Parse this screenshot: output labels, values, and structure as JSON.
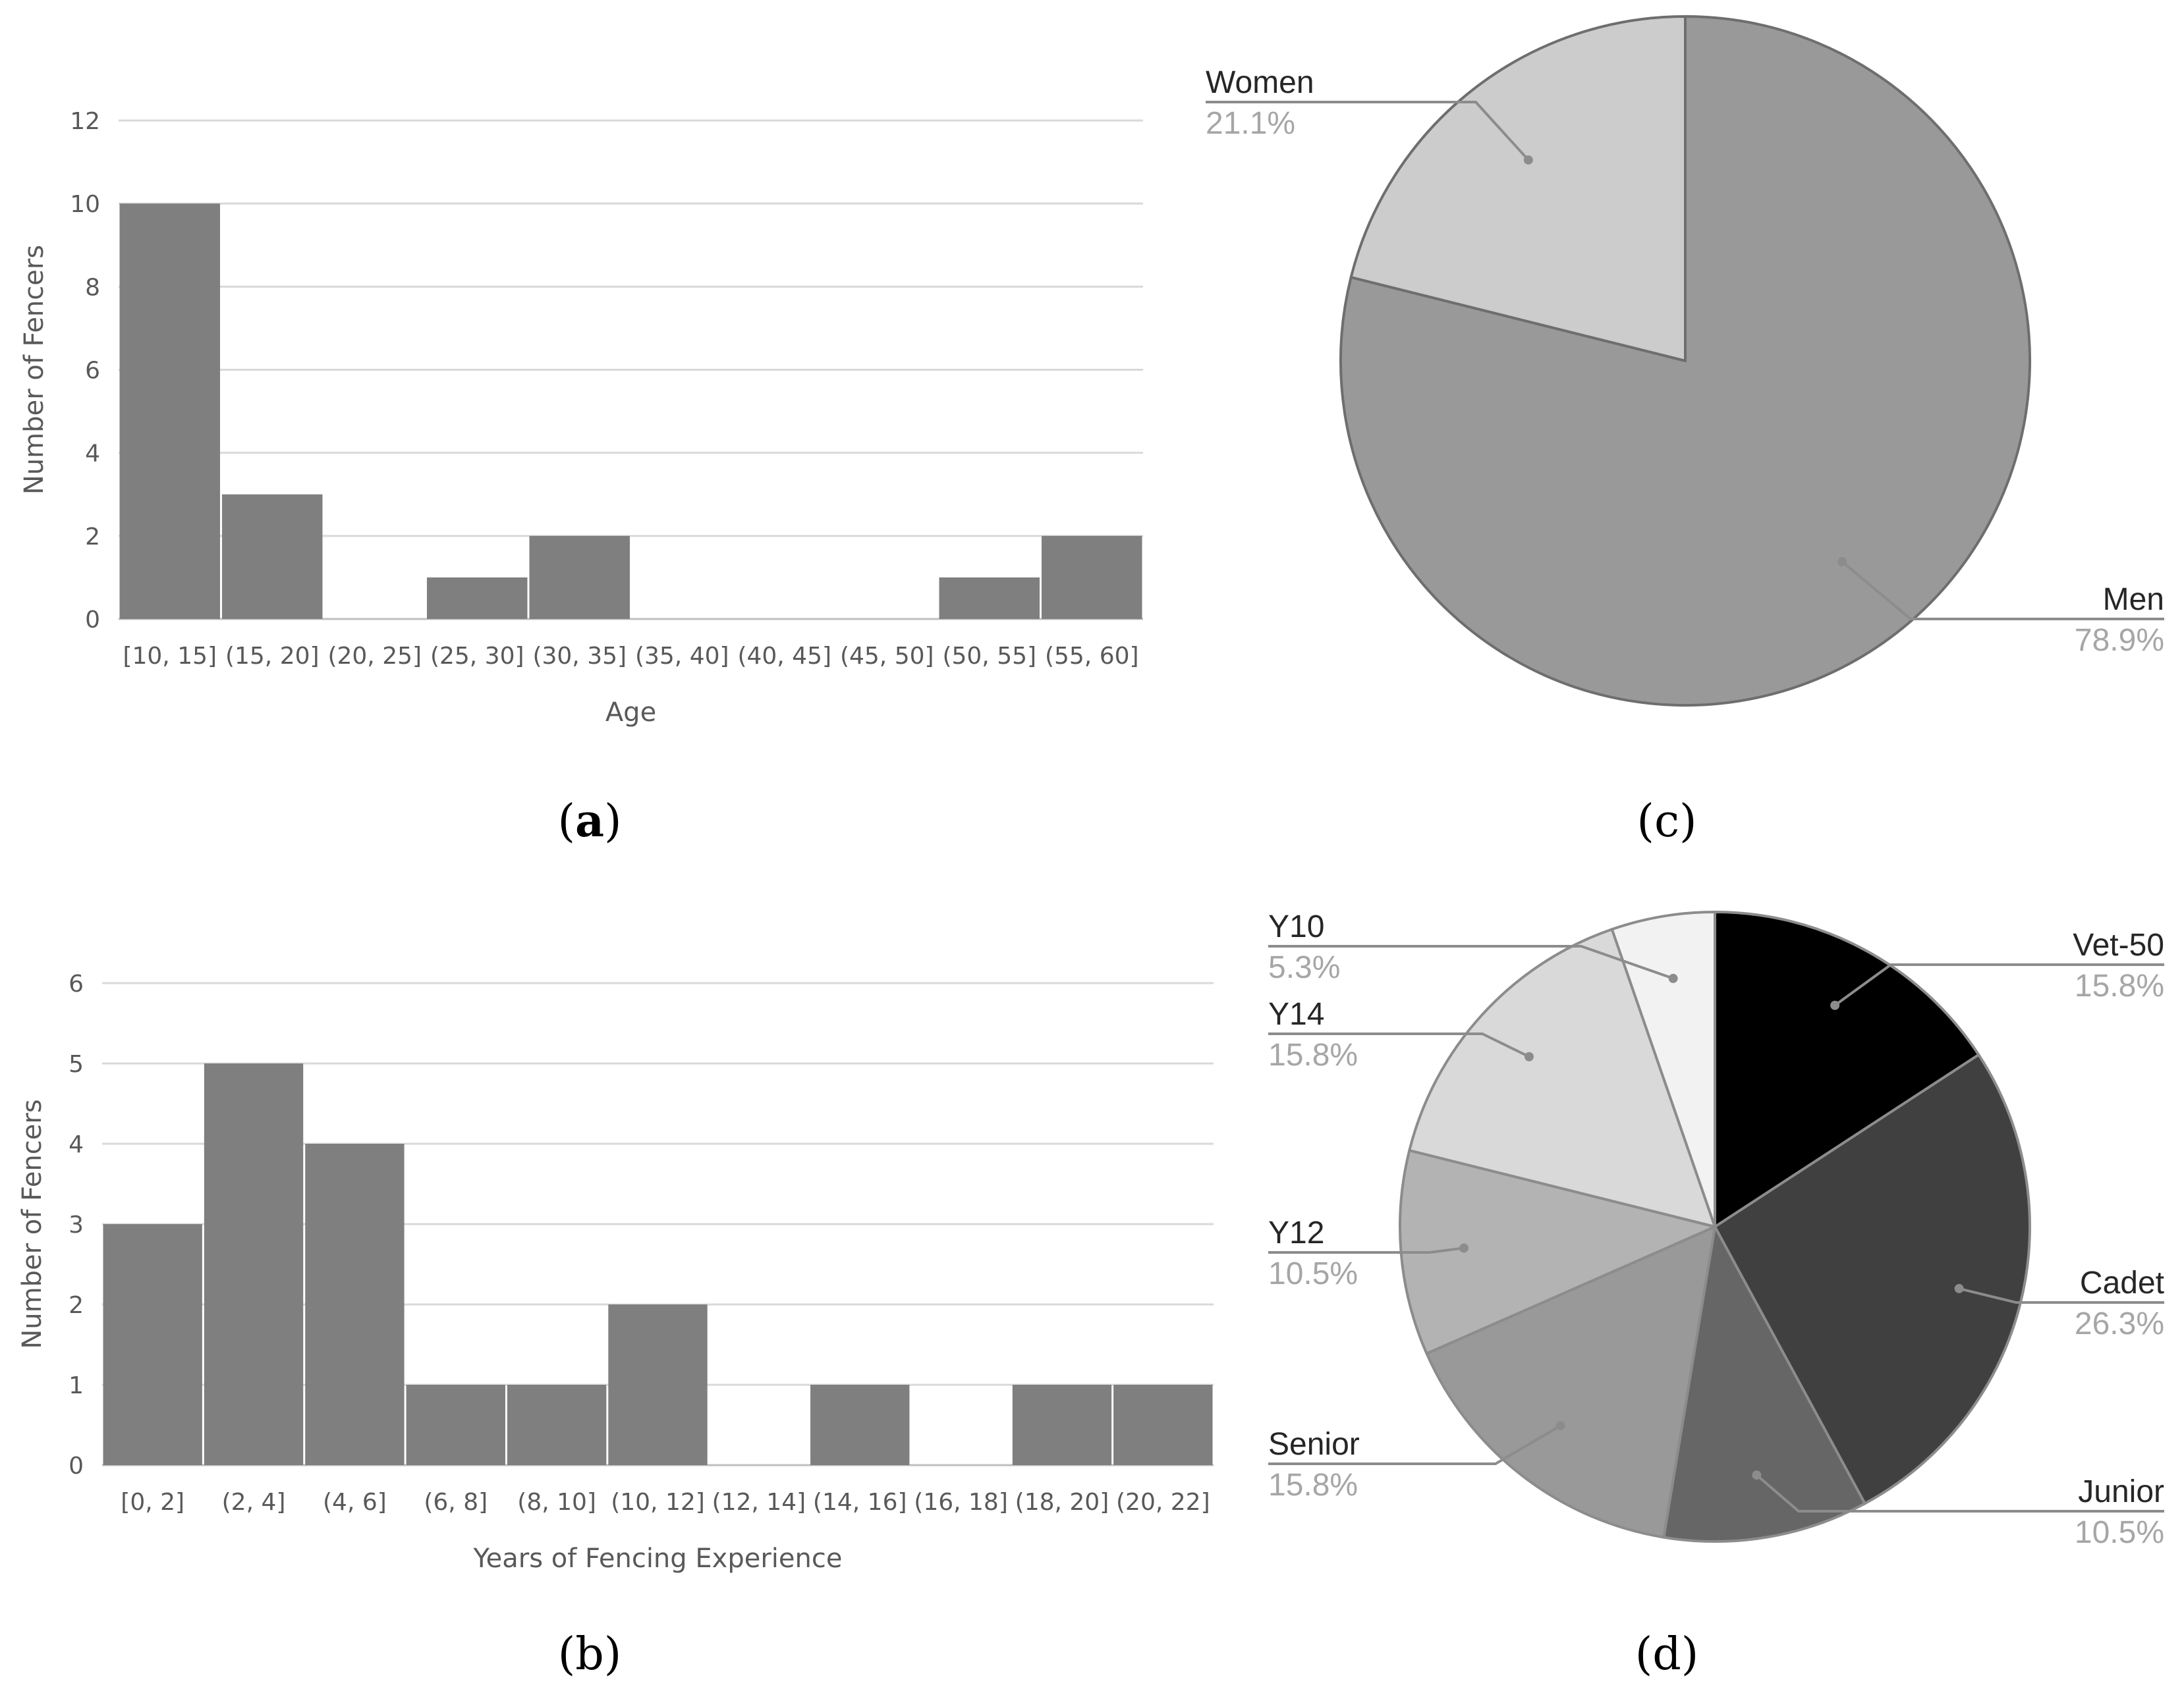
{
  "panel_labels": {
    "a_open": "(",
    "a_letter": "a",
    "a_close": ")",
    "b": "(b)",
    "c": "(c)",
    "d": "(d)"
  },
  "chart_data": [
    {
      "id": "a",
      "type": "bar",
      "title": "",
      "xlabel": "Age",
      "ylabel": "Number of Fencers",
      "categories": [
        "[10, 15]",
        "(15, 20]",
        "(20, 25]",
        "(25, 30]",
        "(30, 35]",
        "(35, 40]",
        "(40, 45]",
        "(45, 50]",
        "(50, 55]",
        "(55, 60]"
      ],
      "values": [
        10,
        3,
        0,
        1,
        2,
        0,
        0,
        0,
        1,
        2
      ],
      "ylim": [
        0,
        12
      ],
      "yticks": [
        0,
        2,
        4,
        6,
        8,
        10,
        12
      ],
      "grid": true,
      "bar_color": "#7f7f7f"
    },
    {
      "id": "b",
      "type": "bar",
      "title": "",
      "xlabel": "Years of Fencing Experience",
      "ylabel": "Number of Fencers",
      "categories": [
        "[0, 2]",
        "(2, 4]",
        "(4, 6]",
        "(6, 8]",
        "(8, 10]",
        "(10, 12]",
        "(12, 14]",
        "(14, 16]",
        "(16, 18]",
        "(18, 20]",
        "(20, 22]"
      ],
      "values": [
        3,
        5,
        4,
        1,
        1,
        2,
        0,
        1,
        0,
        1,
        1
      ],
      "ylim": [
        0,
        6
      ],
      "yticks": [
        0,
        1,
        2,
        3,
        4,
        5,
        6
      ],
      "grid": true,
      "bar_color": "#7f7f7f"
    },
    {
      "id": "c",
      "type": "pie",
      "title": "",
      "slices": [
        {
          "label": "Men",
          "value": 78.9,
          "pct_text": "78.9%",
          "color": "#999999"
        },
        {
          "label": "Women",
          "value": 21.1,
          "pct_text": "21.1%",
          "color": "#cccccc"
        }
      ]
    },
    {
      "id": "d",
      "type": "pie",
      "title": "",
      "slices": [
        {
          "label": "Vet-50",
          "value": 15.8,
          "pct_text": "15.8%",
          "color": "#000000"
        },
        {
          "label": "Cadet",
          "value": 26.3,
          "pct_text": "26.3%",
          "color": "#404040"
        },
        {
          "label": "Junior",
          "value": 10.5,
          "pct_text": "10.5%",
          "color": "#666666"
        },
        {
          "label": "Senior",
          "value": 15.8,
          "pct_text": "15.8%",
          "color": "#999999"
        },
        {
          "label": "Y12",
          "value": 10.5,
          "pct_text": "10.5%",
          "color": "#b3b3b3"
        },
        {
          "label": "Y14",
          "value": 15.8,
          "pct_text": "15.8%",
          "color": "#d9d9d9"
        },
        {
          "label": "Y10",
          "value": 5.3,
          "pct_text": "5.3%",
          "color": "#f2f2f2"
        }
      ]
    }
  ]
}
